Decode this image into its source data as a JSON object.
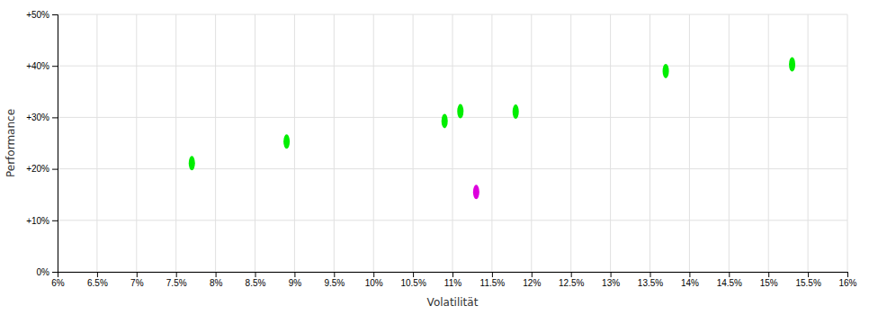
{
  "chart_data": {
    "type": "scatter",
    "xlabel": "Volatilität",
    "ylabel": "Performance",
    "xlim": [
      0.06,
      0.16
    ],
    "ylim": [
      0.0,
      0.5
    ],
    "xticks": [
      {
        "value": 0.06,
        "label": "6%"
      },
      {
        "value": 0.065,
        "label": "6.5%"
      },
      {
        "value": 0.07,
        "label": "7%"
      },
      {
        "value": 0.075,
        "label": "7.5%"
      },
      {
        "value": 0.08,
        "label": "8%"
      },
      {
        "value": 0.085,
        "label": "8.5%"
      },
      {
        "value": 0.09,
        "label": "9%"
      },
      {
        "value": 0.095,
        "label": "9.5%"
      },
      {
        "value": 0.1,
        "label": "10%"
      },
      {
        "value": 0.105,
        "label": "10.5%"
      },
      {
        "value": 0.11,
        "label": "11%"
      },
      {
        "value": 0.115,
        "label": "11.5%"
      },
      {
        "value": 0.12,
        "label": "12%"
      },
      {
        "value": 0.125,
        "label": "12.5%"
      },
      {
        "value": 0.13,
        "label": "13%"
      },
      {
        "value": 0.135,
        "label": "13.5%"
      },
      {
        "value": 0.14,
        "label": "14%"
      },
      {
        "value": 0.145,
        "label": "14.5%"
      },
      {
        "value": 0.15,
        "label": "15%"
      },
      {
        "value": 0.155,
        "label": "15.5%"
      },
      {
        "value": 0.16,
        "label": "16%"
      }
    ],
    "yticks": [
      {
        "value": 0.0,
        "label": "0%"
      },
      {
        "value": 0.1,
        "label": "+10%"
      },
      {
        "value": 0.2,
        "label": "+20%"
      },
      {
        "value": 0.3,
        "label": "+30%"
      },
      {
        "value": 0.4,
        "label": "+40%"
      },
      {
        "value": 0.5,
        "label": "+50%"
      }
    ],
    "grid": true,
    "marker": "ellipse",
    "series": [
      {
        "color": "#00ee00",
        "x": [
          0.077,
          0.089,
          0.109,
          0.111,
          0.118,
          0.137,
          0.153
        ],
        "values": [
          0.211,
          0.253,
          0.293,
          0.312,
          0.311,
          0.39,
          0.403
        ]
      },
      {
        "color": "#dd00dd",
        "x": [
          0.113
        ],
        "values": [
          0.155
        ]
      }
    ]
  }
}
